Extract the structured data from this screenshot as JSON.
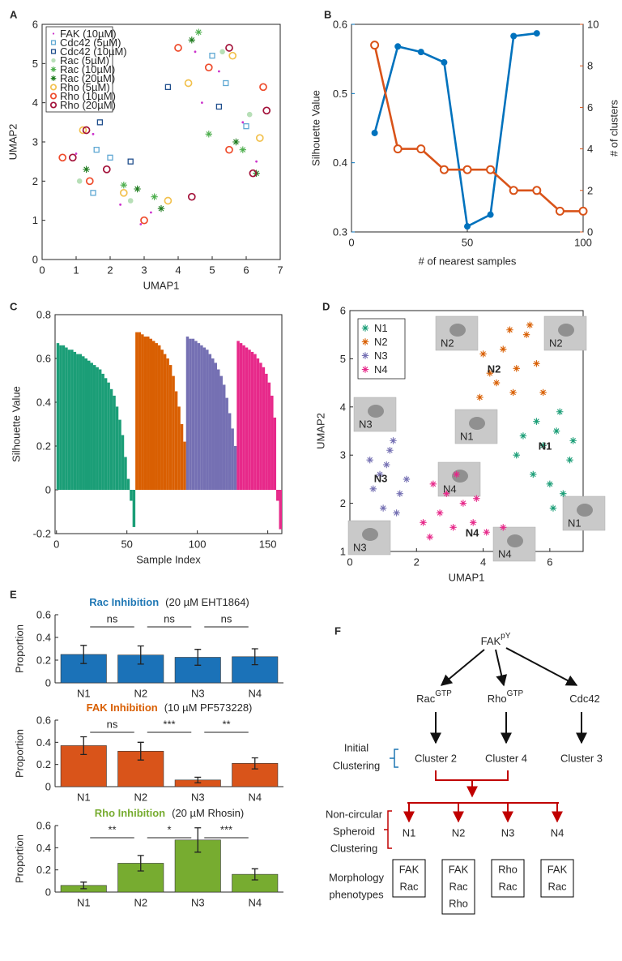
{
  "chart_data": [
    {
      "type": "scatter",
      "panel": "A",
      "xlabel": "UMAP1",
      "ylabel": "UMAP2",
      "xlim": [
        0,
        7
      ],
      "ylim": [
        0,
        6
      ],
      "xticks": [
        0,
        1,
        2,
        3,
        4,
        5,
        6,
        7
      ],
      "yticks": [
        0,
        1,
        2,
        3,
        4,
        5,
        6
      ],
      "legend": "upper left",
      "series": [
        {
          "name": "FAK (10µM)",
          "color": "#cc33cc",
          "marker": "dot",
          "x": [
            1.5,
            2.3,
            3.2,
            4.5,
            5.2,
            5.9,
            6.3,
            2.9,
            4.7,
            1.0
          ],
          "values": [
            3.2,
            1.4,
            1.2,
            5.3,
            4.8,
            3.5,
            2.5,
            0.9,
            4.0,
            2.7
          ]
        },
        {
          "name": "Cdc42 (5µM)",
          "color": "#5fa8d3",
          "marker": "square",
          "x": [
            1.6,
            2.0,
            5.4,
            1.5,
            6.0,
            5.0
          ],
          "values": [
            2.8,
            2.6,
            4.5,
            1.7,
            3.4,
            5.2
          ]
        },
        {
          "name": "Cdc42 (10µM)",
          "color": "#1f4e8c",
          "marker": "square",
          "x": [
            1.7,
            3.7,
            2.6,
            5.2
          ],
          "values": [
            3.5,
            4.4,
            2.5,
            3.9
          ]
        },
        {
          "name": "Rac (5µM)",
          "color": "#b7dfb7",
          "marker": "filled-circle",
          "x": [
            2.6,
            5.3,
            6.1,
            1.1
          ],
          "values": [
            1.5,
            5.3,
            3.7,
            2.0
          ]
        },
        {
          "name": "Rac (10µM)",
          "color": "#4cae4c",
          "marker": "star",
          "x": [
            2.4,
            4.6,
            5.9,
            3.3,
            4.9
          ],
          "values": [
            1.9,
            5.8,
            2.8,
            1.6,
            3.2
          ]
        },
        {
          "name": "Rac (20µM)",
          "color": "#1e7b1e",
          "marker": "star",
          "x": [
            2.8,
            3.5,
            4.4,
            5.7,
            6.3,
            1.3
          ],
          "values": [
            1.8,
            1.3,
            5.6,
            3.0,
            2.2,
            2.3
          ]
        },
        {
          "name": "Rho (5µM)",
          "color": "#f2c14e",
          "marker": "circle",
          "x": [
            1.2,
            2.4,
            3.7,
            4.3,
            5.6,
            6.4
          ],
          "values": [
            3.3,
            1.7,
            1.5,
            4.5,
            5.2,
            3.1
          ]
        },
        {
          "name": "Rho (10µM)",
          "color": "#ee4b2b",
          "marker": "circle",
          "x": [
            0.6,
            1.4,
            3.0,
            4.0,
            5.5,
            6.5,
            4.9
          ],
          "values": [
            2.6,
            2.0,
            1.0,
            5.4,
            2.8,
            4.4,
            4.9
          ]
        },
        {
          "name": "Rho (20µM)",
          "color": "#a3123a",
          "marker": "circle",
          "x": [
            1.3,
            1.9,
            4.4,
            5.5,
            6.2,
            6.6,
            0.9
          ],
          "values": [
            3.3,
            2.3,
            1.6,
            5.4,
            2.2,
            3.8,
            2.6
          ]
        }
      ]
    },
    {
      "type": "line",
      "panel": "B",
      "xlabel": "# of nearest samples",
      "ylabel": "Silhouette Value",
      "y2label": "# of clusters",
      "ycolor": "#0072bd",
      "y2color": "#d95319",
      "xlim": [
        0,
        100
      ],
      "xticks": [
        0,
        50,
        100
      ],
      "ylim": [
        0.3,
        0.6
      ],
      "yticks": [
        0.3,
        0.4,
        0.5,
        0.6
      ],
      "y2lim": [
        0,
        10
      ],
      "y2ticks": [
        0,
        2,
        4,
        6,
        8,
        10
      ],
      "series": [
        {
          "color": "#0072bd",
          "marker": "filled-circle",
          "x": [
            10,
            20,
            30,
            40,
            50,
            60,
            70,
            80
          ],
          "values": [
            0.443,
            0.568,
            0.56,
            0.545,
            0.308,
            0.325,
            0.583,
            0.587
          ]
        },
        {
          "color": "#d95319",
          "marker": "circle",
          "axis": "y2",
          "x": [
            10,
            20,
            30,
            40,
            50,
            60,
            70,
            80,
            90,
            100
          ],
          "values": [
            9,
            4,
            4,
            3,
            3,
            3,
            2,
            2,
            1,
            1
          ]
        }
      ]
    },
    {
      "type": "bar",
      "panel": "C",
      "xlabel": "Sample Index",
      "ylabel": "Silhouette Value",
      "xlim": [
        -1,
        160
      ],
      "xticks": [
        0,
        50,
        100,
        150
      ],
      "ylim": [
        -0.2,
        0.8
      ],
      "yticks": [
        -0.2,
        0,
        0.2,
        0.4,
        0.6,
        0.8
      ],
      "series": [
        {
          "color": "#1b9e77",
          "x": [
            1,
            3,
            5,
            7,
            9,
            11,
            13,
            15,
            17,
            19,
            21,
            23,
            25,
            27,
            29,
            31,
            33,
            35,
            37,
            39,
            41,
            43,
            45,
            47,
            49,
            51,
            53,
            55
          ],
          "values": [
            0.67,
            0.66,
            0.66,
            0.65,
            0.64,
            0.64,
            0.63,
            0.62,
            0.62,
            0.61,
            0.6,
            0.59,
            0.58,
            0.57,
            0.56,
            0.55,
            0.53,
            0.51,
            0.49,
            0.46,
            0.43,
            0.38,
            0.32,
            0.25,
            0.15,
            0.05,
            -0.05,
            -0.17
          ]
        },
        {
          "color": "#d95f02",
          "x": [
            57,
            59,
            61,
            63,
            65,
            67,
            69,
            71,
            73,
            75,
            77,
            79,
            81,
            83,
            85,
            87,
            89,
            91
          ],
          "values": [
            0.72,
            0.72,
            0.71,
            0.7,
            0.7,
            0.69,
            0.68,
            0.67,
            0.66,
            0.64,
            0.62,
            0.6,
            0.57,
            0.52,
            0.45,
            0.38,
            0.3,
            0.22
          ]
        },
        {
          "color": "#7570b3",
          "x": [
            93,
            95,
            97,
            99,
            101,
            103,
            105,
            107,
            109,
            111,
            113,
            115,
            117,
            119,
            121,
            123,
            125,
            127
          ],
          "values": [
            0.7,
            0.69,
            0.69,
            0.68,
            0.67,
            0.66,
            0.65,
            0.64,
            0.62,
            0.6,
            0.58,
            0.55,
            0.52,
            0.48,
            0.42,
            0.35,
            0.28,
            0.2
          ]
        },
        {
          "color": "#e7298a",
          "x": [
            129,
            131,
            133,
            135,
            137,
            139,
            141,
            143,
            145,
            147,
            149,
            151,
            153,
            155,
            157,
            159
          ],
          "values": [
            0.68,
            0.67,
            0.66,
            0.65,
            0.64,
            0.63,
            0.62,
            0.6,
            0.58,
            0.56,
            0.53,
            0.49,
            0.43,
            0.33,
            -0.05,
            -0.18
          ]
        }
      ]
    },
    {
      "type": "scatter",
      "panel": "D",
      "xlabel": "UMAP1",
      "ylabel": "UMAP2",
      "xlim": [
        0,
        7
      ],
      "ylim": [
        1,
        6
      ],
      "xticks": [
        0,
        2,
        4,
        6
      ],
      "yticks": [
        1,
        2,
        3,
        4,
        5,
        6
      ],
      "legend": "upper left",
      "series": [
        {
          "name": "N1",
          "color": "#1b9e77",
          "marker": "star",
          "x": [
            5.8,
            6.2,
            5.5,
            6.4,
            6.6,
            5.2,
            6.0,
            6.7,
            5.6,
            6.3,
            6.1,
            5.0
          ],
          "values": [
            3.2,
            3.5,
            2.6,
            2.2,
            2.9,
            3.4,
            2.4,
            3.3,
            3.7,
            3.9,
            1.9,
            3.0
          ]
        },
        {
          "name": "N2",
          "color": "#d95f02",
          "marker": "star",
          "x": [
            4.2,
            4.6,
            5.0,
            5.3,
            4.9,
            5.6,
            4.0,
            4.4,
            5.8,
            5.4,
            3.9,
            4.8
          ],
          "values": [
            4.7,
            5.2,
            4.8,
            5.5,
            4.3,
            4.9,
            5.1,
            4.5,
            4.3,
            5.7,
            4.2,
            5.6
          ]
        },
        {
          "name": "N3",
          "color": "#7570b3",
          "marker": "star",
          "x": [
            0.6,
            0.9,
            1.2,
            1.5,
            1.0,
            1.3,
            0.7,
            1.7,
            1.4,
            1.1
          ],
          "values": [
            2.9,
            2.6,
            3.1,
            2.2,
            1.9,
            3.3,
            2.3,
            2.5,
            1.8,
            2.8
          ]
        },
        {
          "name": "N4",
          "color": "#e7298a",
          "marker": "star",
          "x": [
            2.2,
            2.7,
            3.1,
            3.4,
            2.9,
            3.7,
            4.1,
            2.5,
            3.2,
            2.4,
            3.8,
            4.6
          ],
          "values": [
            1.6,
            1.8,
            1.5,
            2.0,
            2.2,
            1.6,
            1.4,
            2.4,
            2.6,
            1.3,
            2.1,
            1.5
          ]
        }
      ],
      "cluster_labels": [
        "N1",
        "N2",
        "N3",
        "N4"
      ],
      "image_labels": [
        "N2",
        "N2",
        "N3",
        "N1",
        "N4",
        "N1",
        "N3",
        "N4"
      ]
    },
    {
      "type": "bar",
      "panel": "E",
      "title": "Rac Inhibition",
      "subtitle": "(20 µM EHT1864)",
      "title_color": "#1f77b4",
      "ylabel": "Proportion",
      "color": "#1b72b8",
      "categories": [
        "N1",
        "N2",
        "N3",
        "N4"
      ],
      "values": [
        0.25,
        0.245,
        0.225,
        0.23
      ],
      "errors": [
        0.08,
        0.08,
        0.07,
        0.07
      ],
      "ylim": [
        0,
        0.6
      ],
      "yticks": [
        0,
        0.2,
        0.4,
        0.6
      ],
      "significance": [
        "ns",
        "ns",
        "ns"
      ]
    },
    {
      "type": "bar",
      "title": "FAK Inhibition",
      "subtitle": "(10 µM PF573228)",
      "title_color": "#d95f02",
      "ylabel": "Proportion",
      "color": "#d9541a",
      "categories": [
        "N1",
        "N2",
        "N3",
        "N4"
      ],
      "values": [
        0.37,
        0.32,
        0.06,
        0.21
      ],
      "errors": [
        0.08,
        0.08,
        0.025,
        0.05
      ],
      "ylim": [
        0,
        0.6
      ],
      "yticks": [
        0,
        0.2,
        0.4,
        0.6
      ],
      "significance": [
        "ns",
        "***",
        "**"
      ]
    },
    {
      "type": "bar",
      "title": "Rho Inhibition",
      "subtitle": "(20 µM Rhosin)",
      "title_color": "#77ac30",
      "ylabel": "Proportion",
      "color": "#77ac30",
      "categories": [
        "N1",
        "N2",
        "N3",
        "N4"
      ],
      "values": [
        0.06,
        0.26,
        0.47,
        0.16
      ],
      "errors": [
        0.03,
        0.07,
        0.11,
        0.05
      ],
      "ylim": [
        0,
        0.6
      ],
      "yticks": [
        0,
        0.2,
        0.4,
        0.6
      ],
      "significance": [
        "**",
        "*",
        "***"
      ]
    }
  ],
  "diagram": {
    "panel": "F",
    "top": {
      "text": "FAK",
      "sup": "pY"
    },
    "level2": [
      {
        "text": "Rac",
        "sup": "GTP"
      },
      {
        "text": "Rho",
        "sup": "GTP"
      },
      {
        "text": "Cdc42"
      }
    ],
    "initial_label": [
      "Initial",
      "Clustering"
    ],
    "clusters": [
      "Cluster 2",
      "Cluster 4",
      "Cluster 3"
    ],
    "noncircular_label": [
      "Non-circular",
      "Spheroid",
      "Clustering"
    ],
    "outcomes": [
      "N1",
      "N2",
      "N3",
      "N4"
    ],
    "phenotype_label": [
      "Morphology",
      "phenotypes"
    ],
    "phenotypes": [
      [
        "FAK",
        "Rac"
      ],
      [
        "FAK",
        "Rac",
        "Rho"
      ],
      [
        "Rho",
        "Rac"
      ],
      [
        "FAK",
        "Rac"
      ]
    ]
  }
}
